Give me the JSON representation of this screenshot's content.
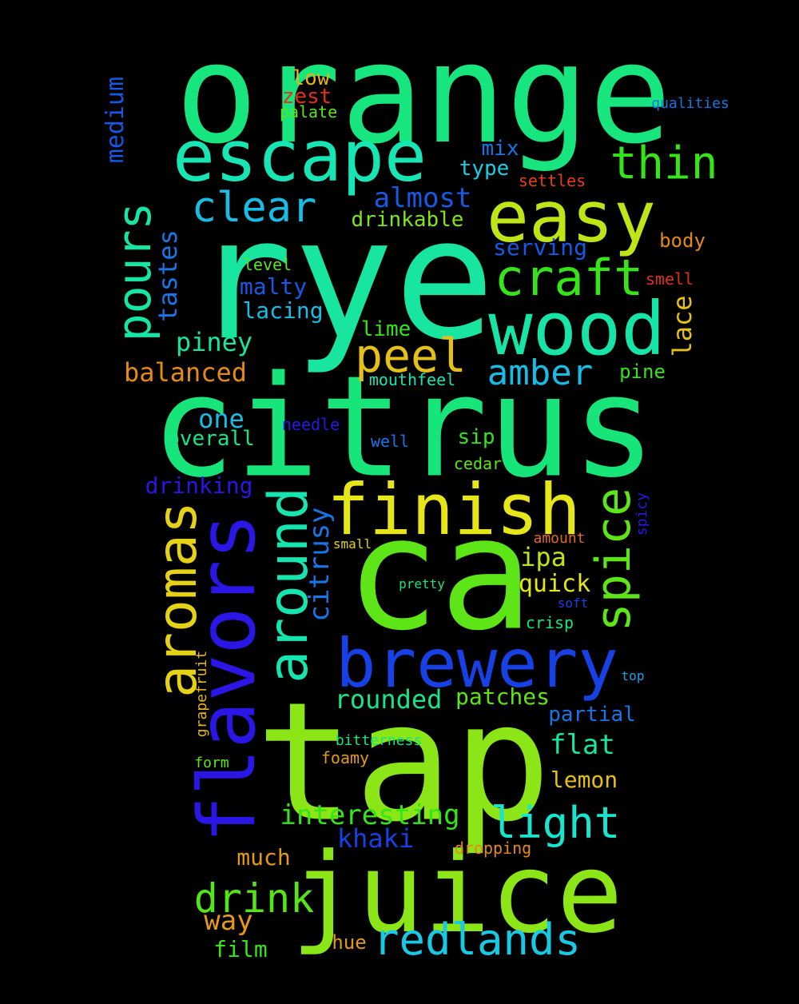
{
  "words": [
    {
      "text": "orange",
      "color": "#17e57e"
    },
    {
      "text": "rye",
      "color": "#17e5a0"
    },
    {
      "text": "citrus",
      "color": "#17e57a"
    },
    {
      "text": "ca",
      "color": "#5de517"
    },
    {
      "text": "tap",
      "color": "#8be517"
    },
    {
      "text": "juice",
      "color": "#8be517"
    },
    {
      "text": "escape",
      "color": "#17e5b4"
    },
    {
      "text": "easy",
      "color": "#bfe517"
    },
    {
      "text": "wood",
      "color": "#17e5a8"
    },
    {
      "text": "finish",
      "color": "#e5e517"
    },
    {
      "text": "brewery",
      "color": "#1740e5"
    },
    {
      "text": "flavors",
      "color": "#2a17e5"
    },
    {
      "text": "aromas",
      "color": "#e5d217"
    },
    {
      "text": "around",
      "color": "#17e5b0"
    },
    {
      "text": "craft",
      "color": "#35e517"
    },
    {
      "text": "thin",
      "color": "#35e517"
    },
    {
      "text": "peel",
      "color": "#e5c117"
    },
    {
      "text": "pours",
      "color": "#17e5a4"
    },
    {
      "text": "clear",
      "color": "#17bde5"
    },
    {
      "text": "spice",
      "color": "#5de517"
    },
    {
      "text": "redlands",
      "color": "#17c9e5"
    },
    {
      "text": "amber",
      "color": "#17bde5"
    },
    {
      "text": "light",
      "color": "#17e5d0"
    },
    {
      "text": "drink",
      "color": "#55e517"
    },
    {
      "text": "almost",
      "color": "#1759e5"
    },
    {
      "text": "rounded",
      "color": "#17e58a"
    },
    {
      "text": "interesting",
      "color": "#35e517"
    },
    {
      "text": "balanced",
      "color": "#e58a17"
    },
    {
      "text": "tastes",
      "color": "#1776e5"
    },
    {
      "text": "citrusy",
      "color": "#1776e5"
    },
    {
      "text": "medium",
      "color": "#1759e5"
    },
    {
      "text": "piney",
      "color": "#17e5a0"
    },
    {
      "text": "lace",
      "color": "#e5c117"
    },
    {
      "text": "khaki",
      "color": "#1740e5"
    },
    {
      "text": "flat",
      "color": "#17e5a0"
    },
    {
      "text": "patches",
      "color": "#5de517"
    },
    {
      "text": "lemon",
      "color": "#e5c117"
    },
    {
      "text": "partial",
      "color": "#1776e5"
    },
    {
      "text": "way",
      "color": "#e59a17"
    },
    {
      "text": "mix",
      "color": "#1776e5"
    },
    {
      "text": "type",
      "color": "#17d0e5"
    },
    {
      "text": "serving",
      "color": "#1759e5"
    },
    {
      "text": "drinkable",
      "color": "#7ee517"
    },
    {
      "text": "malty",
      "color": "#1759e5"
    },
    {
      "text": "lacing",
      "color": "#17bde5"
    },
    {
      "text": "one",
      "color": "#17bde5"
    },
    {
      "text": "overall",
      "color": "#17e58a"
    },
    {
      "text": "drinking",
      "color": "#2a17e5"
    },
    {
      "text": "ipa",
      "color": "#bfe517"
    },
    {
      "text": "quick",
      "color": "#e5e517"
    },
    {
      "text": "much",
      "color": "#e59a17"
    },
    {
      "text": "film",
      "color": "#35e517"
    },
    {
      "text": "low",
      "color": "#e5b417"
    },
    {
      "text": "zest",
      "color": "#e52f17"
    },
    {
      "text": "palate",
      "color": "#5de517"
    },
    {
      "text": "body",
      "color": "#e58a17"
    },
    {
      "text": "pine",
      "color": "#35e517"
    },
    {
      "text": "lime",
      "color": "#35e517"
    },
    {
      "text": "sip",
      "color": "#35e517"
    },
    {
      "text": "settles",
      "color": "#e54017"
    },
    {
      "text": "smell",
      "color": "#e52f17"
    },
    {
      "text": "level",
      "color": "#5de517"
    },
    {
      "text": "mouthfeel",
      "color": "#17e5b4"
    },
    {
      "text": "needle",
      "color": "#2a17e5"
    },
    {
      "text": "well",
      "color": "#1776e5"
    },
    {
      "text": "cedar",
      "color": "#5de517"
    },
    {
      "text": "qualities",
      "color": "#1776e5"
    },
    {
      "text": "spicy",
      "color": "#2a17e5"
    },
    {
      "text": "amount",
      "color": "#e56a17"
    },
    {
      "text": "small",
      "color": "#e5d217"
    },
    {
      "text": "pretty",
      "color": "#17e57e"
    },
    {
      "text": "soft",
      "color": "#1740e5"
    },
    {
      "text": "crisp",
      "color": "#17e57e"
    },
    {
      "text": "top",
      "color": "#17a0e5"
    },
    {
      "text": "grapefruit",
      "color": "#e5b417"
    },
    {
      "text": "bitterness",
      "color": "#17e57e"
    },
    {
      "text": "foamy",
      "color": "#e59a17"
    },
    {
      "text": "form",
      "color": "#5de517"
    },
    {
      "text": "dropping",
      "color": "#e58a17"
    },
    {
      "text": "hue",
      "color": "#e59a17"
    }
  ]
}
